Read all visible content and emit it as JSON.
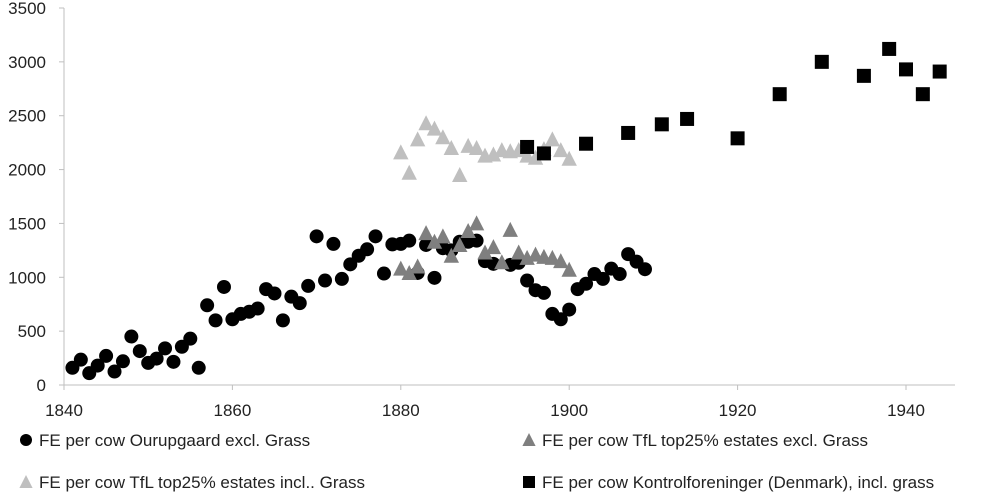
{
  "chart_data": {
    "type": "scatter",
    "title": "",
    "xlabel": "",
    "ylabel": "",
    "xlim": [
      1840,
      1945
    ],
    "ylim": [
      0,
      3500
    ],
    "x_ticks": [
      1840,
      1860,
      1880,
      1900,
      1920,
      1940
    ],
    "y_ticks": [
      0,
      500,
      1000,
      1500,
      2000,
      2500,
      3000,
      3500
    ],
    "grid": false,
    "legend_position": "bottom",
    "series": [
      {
        "name": "FE per cow Ourupgaard excl. Grass",
        "marker": "circle",
        "color": "#000000",
        "points": [
          [
            1841,
            160
          ],
          [
            1842,
            235
          ],
          [
            1843,
            110
          ],
          [
            1844,
            180
          ],
          [
            1845,
            270
          ],
          [
            1846,
            125
          ],
          [
            1847,
            220
          ],
          [
            1848,
            450
          ],
          [
            1849,
            315
          ],
          [
            1850,
            205
          ],
          [
            1851,
            245
          ],
          [
            1852,
            340
          ],
          [
            1853,
            215
          ],
          [
            1854,
            355
          ],
          [
            1855,
            430
          ],
          [
            1856,
            160
          ],
          [
            1857,
            740
          ],
          [
            1858,
            600
          ],
          [
            1859,
            910
          ],
          [
            1860,
            610
          ],
          [
            1861,
            660
          ],
          [
            1862,
            680
          ],
          [
            1863,
            710
          ],
          [
            1864,
            890
          ],
          [
            1865,
            850
          ],
          [
            1866,
            600
          ],
          [
            1867,
            820
          ],
          [
            1868,
            760
          ],
          [
            1869,
            920
          ],
          [
            1870,
            1380
          ],
          [
            1871,
            970
          ],
          [
            1872,
            1310
          ],
          [
            1873,
            985
          ],
          [
            1874,
            1120
          ],
          [
            1875,
            1200
          ],
          [
            1876,
            1260
          ],
          [
            1877,
            1380
          ],
          [
            1878,
            1035
          ],
          [
            1879,
            1305
          ],
          [
            1880,
            1310
          ],
          [
            1881,
            1340
          ],
          [
            1882,
            1040
          ],
          [
            1883,
            1300
          ],
          [
            1884,
            995
          ],
          [
            1885,
            1270
          ],
          [
            1886,
            1250
          ],
          [
            1887,
            1330
          ],
          [
            1888,
            1330
          ],
          [
            1889,
            1340
          ],
          [
            1890,
            1150
          ],
          [
            1891,
            1125
          ],
          [
            1893,
            1115
          ],
          [
            1894,
            1135
          ],
          [
            1895,
            970
          ],
          [
            1896,
            880
          ],
          [
            1897,
            855
          ],
          [
            1898,
            660
          ],
          [
            1899,
            610
          ],
          [
            1900,
            700
          ],
          [
            1901,
            890
          ],
          [
            1902,
            940
          ],
          [
            1903,
            1030
          ],
          [
            1904,
            985
          ],
          [
            1905,
            1080
          ],
          [
            1906,
            1030
          ],
          [
            1907,
            1215
          ],
          [
            1908,
            1145
          ],
          [
            1909,
            1075
          ]
        ]
      },
      {
        "name": "FE per cow TfL top25% estates excl. Grass",
        "marker": "triangle",
        "color": "#7f7f7f",
        "points": [
          [
            1880,
            1080
          ],
          [
            1881,
            1040
          ],
          [
            1882,
            1100
          ],
          [
            1883,
            1410
          ],
          [
            1884,
            1330
          ],
          [
            1885,
            1380
          ],
          [
            1886,
            1200
          ],
          [
            1887,
            1300
          ],
          [
            1888,
            1430
          ],
          [
            1889,
            1500
          ],
          [
            1890,
            1230
          ],
          [
            1891,
            1280
          ],
          [
            1892,
            1140
          ],
          [
            1893,
            1440
          ],
          [
            1894,
            1230
          ],
          [
            1895,
            1180
          ],
          [
            1896,
            1210
          ],
          [
            1897,
            1190
          ],
          [
            1898,
            1180
          ],
          [
            1899,
            1150
          ],
          [
            1900,
            1070
          ]
        ]
      },
      {
        "name": "FE per cow TfL top25% estates incl.. Grass",
        "marker": "triangle",
        "color": "#bfbfbf",
        "points": [
          [
            1880,
            2160
          ],
          [
            1881,
            1970
          ],
          [
            1882,
            2280
          ],
          [
            1883,
            2430
          ],
          [
            1884,
            2380
          ],
          [
            1885,
            2300
          ],
          [
            1886,
            2200
          ],
          [
            1887,
            1950
          ],
          [
            1888,
            2220
          ],
          [
            1889,
            2200
          ],
          [
            1890,
            2130
          ],
          [
            1891,
            2140
          ],
          [
            1892,
            2180
          ],
          [
            1893,
            2170
          ],
          [
            1894,
            2180
          ],
          [
            1895,
            2130
          ],
          [
            1896,
            2110
          ],
          [
            1897,
            2190
          ],
          [
            1898,
            2280
          ],
          [
            1899,
            2180
          ],
          [
            1900,
            2100
          ]
        ]
      },
      {
        "name": "FE per cow Kontrolforeninger (Denmark), incl. grass",
        "marker": "square",
        "color": "#000000",
        "points": [
          [
            1895,
            2210
          ],
          [
            1897,
            2150
          ],
          [
            1902,
            2240
          ],
          [
            1907,
            2340
          ],
          [
            1911,
            2420
          ],
          [
            1914,
            2470
          ],
          [
            1920,
            2290
          ],
          [
            1925,
            2700
          ],
          [
            1930,
            3000
          ],
          [
            1935,
            2870
          ],
          [
            1938,
            3120
          ],
          [
            1940,
            2930
          ],
          [
            1942,
            2700
          ],
          [
            1944,
            2910
          ]
        ]
      }
    ]
  }
}
